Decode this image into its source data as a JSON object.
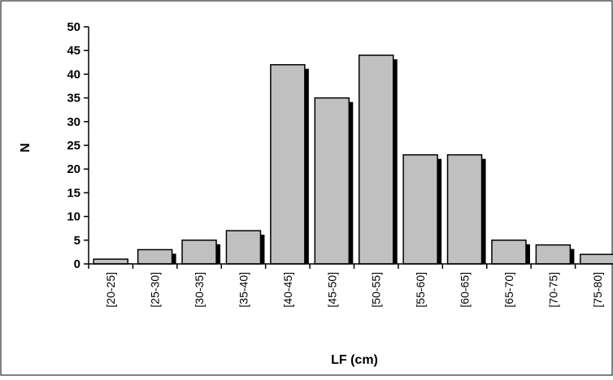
{
  "chart_data": {
    "type": "bar",
    "title": "",
    "xlabel": "LF (cm)",
    "ylabel": "N",
    "categories": [
      "[20-25]",
      "[25-30]",
      "[30-35]",
      "[35-40]",
      "[40-45]",
      "[45-50]",
      "[50-55]",
      "[55-60]",
      "[60-65]",
      "[65-70]",
      "[70-75]",
      "[75-80]"
    ],
    "values": [
      1,
      3,
      5,
      7,
      42,
      35,
      44,
      23,
      23,
      5,
      4,
      2
    ],
    "ylim": [
      0,
      50
    ],
    "yticks": [
      "0",
      "5",
      "10",
      "15",
      "20",
      "25",
      "30",
      "35",
      "40",
      "45",
      "50"
    ],
    "grid": false,
    "legend": "none",
    "colors": {
      "bar_fill": "#c0c0c0",
      "bar_stroke": "#000000",
      "bar_shadow": "#000000",
      "axis": "#000000"
    }
  }
}
